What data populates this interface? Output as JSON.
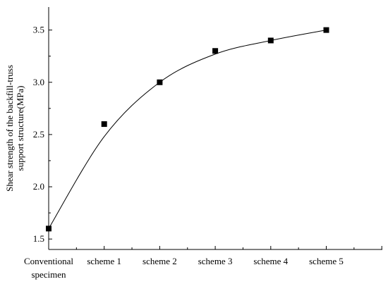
{
  "chart_data": {
    "type": "scatter",
    "categories": [
      "Conventional specimen",
      "scheme 1",
      "scheme 2",
      "scheme 3",
      "scheme 4",
      "scheme 5"
    ],
    "category_lines": [
      [
        "Conventional",
        "specimen"
      ],
      [
        "scheme 1"
      ],
      [
        "scheme 2"
      ],
      [
        "scheme 3"
      ],
      [
        "scheme 4"
      ],
      [
        "scheme 5"
      ]
    ],
    "values": [
      1.6,
      2.6,
      3.0,
      3.3,
      3.4,
      3.5
    ],
    "fit_curve": true,
    "xlim": [
      0,
      6
    ],
    "ylim": [
      1.4,
      3.72
    ],
    "yticks": [
      "1.5",
      "2.0",
      "2.5",
      "3.0",
      "3.5"
    ],
    "ylabel_lines": [
      "Shear strength of the backfill-truss",
      "support structure(MPa)"
    ],
    "xlabel": "",
    "title": "",
    "grid": false,
    "legend": "none",
    "colors": {
      "marker": "#000000",
      "curve": "#000000",
      "axis": "#000000"
    }
  }
}
